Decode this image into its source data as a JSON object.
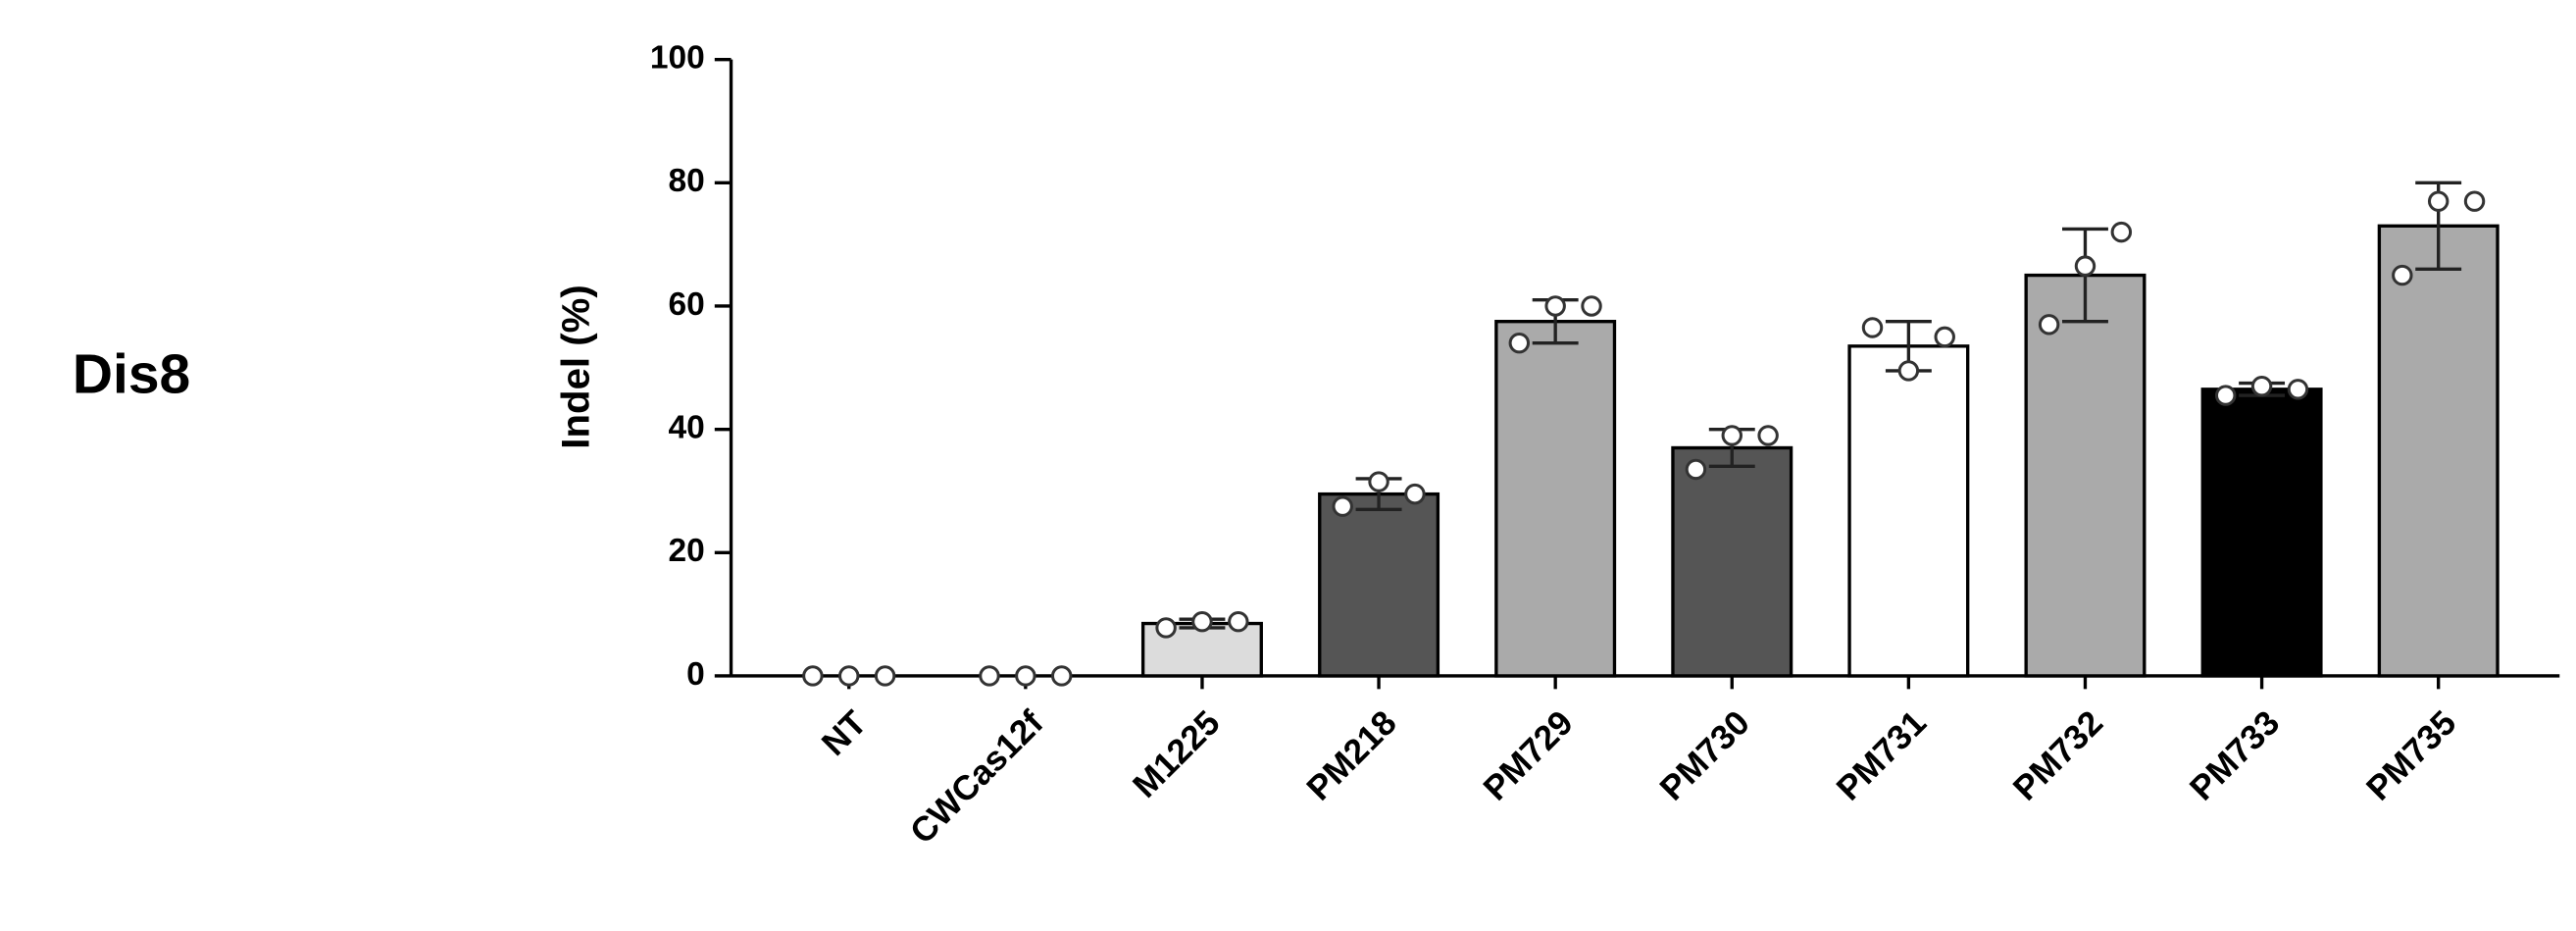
{
  "chart_data": {
    "type": "bar",
    "panel_label": "Dis8",
    "ylabel": "Indel (%)",
    "categories": [
      "NT",
      "CWCas12f",
      "M1225",
      "PM218",
      "PM729",
      "PM730",
      "PM731",
      "PM732",
      "PM733",
      "PM735"
    ],
    "values": [
      0,
      0,
      8.5,
      29.5,
      57.5,
      37,
      53.5,
      65,
      46.5,
      73
    ],
    "errors": [
      0,
      0,
      0.7,
      2.5,
      3.5,
      3,
      4,
      7.5,
      1,
      7
    ],
    "points": [
      [
        0,
        0,
        0
      ],
      [
        0,
        0,
        0
      ],
      [
        7.8,
        8.8,
        8.8
      ],
      [
        27.5,
        31.5,
        29.5
      ],
      [
        54,
        60,
        60
      ],
      [
        33.5,
        39,
        39
      ],
      [
        56.5,
        49.5,
        55
      ],
      [
        57,
        66.5,
        72
      ],
      [
        45.5,
        47,
        46.5
      ],
      [
        65,
        77,
        77
      ]
    ],
    "colors": [
      "#ffffff",
      "#ffffff",
      "#dcdcdc",
      "#555555",
      "#aaaaaa",
      "#555555",
      "#ffffff",
      "#aaaaaa",
      "#000000",
      "#aaaaaa"
    ],
    "ylim": [
      0,
      100
    ],
    "yticks": [
      0,
      20,
      40,
      60,
      80,
      100
    ]
  }
}
